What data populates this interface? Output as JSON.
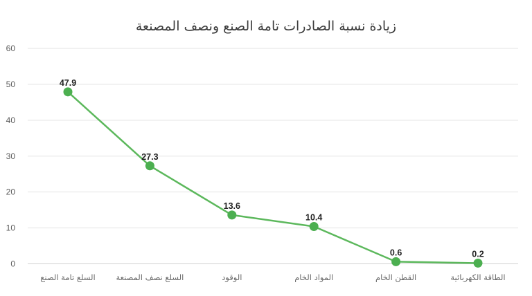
{
  "chart_data": {
    "type": "line",
    "title": "زيادة نسبة الصادرات تامة الصنع ونصف المصنعة",
    "xlabel": "",
    "ylabel": "",
    "categories": [
      "السلع تامة الصنع",
      "السلع نصف المصنعة",
      "الوقود",
      "المواد الخام",
      "القطن الخام",
      "الطاقة الكهربائية"
    ],
    "series": [
      {
        "values": [
          47.9,
          27.3,
          13.6,
          10.4,
          0.6,
          0.2
        ]
      }
    ],
    "data_labels": [
      "47.9",
      "27.3",
      "13.6",
      "10.4",
      "0.6",
      "0.2"
    ],
    "ylim": [
      0,
      60
    ],
    "yticks": [
      0,
      10,
      20,
      30,
      40,
      50,
      60
    ],
    "grid": true,
    "legend": "none",
    "colors": {
      "line": "#5cb85c",
      "marker": "#4caf50",
      "grid": "#e3e3e3"
    }
  }
}
